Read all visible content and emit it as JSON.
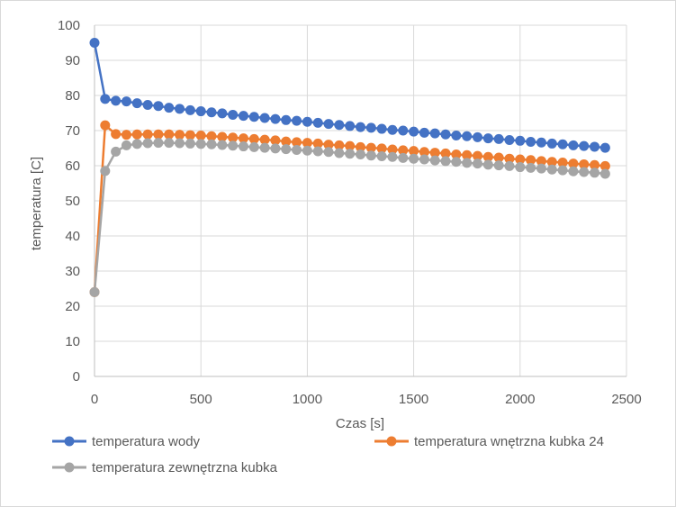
{
  "chart_data": {
    "type": "line",
    "xlabel": "Czas [s]",
    "ylabel": "temperatura [C]",
    "xlim": [
      0,
      2500
    ],
    "ylim": [
      0,
      100
    ],
    "x_ticks": [
      0,
      500,
      1000,
      1500,
      2000,
      2500
    ],
    "y_ticks": [
      0,
      10,
      20,
      30,
      40,
      50,
      60,
      70,
      80,
      90,
      100
    ],
    "grid": true,
    "legend_position": "bottom",
    "x": [
      0,
      50,
      100,
      150,
      200,
      250,
      300,
      350,
      400,
      450,
      500,
      550,
      600,
      650,
      700,
      750,
      800,
      850,
      900,
      950,
      1000,
      1050,
      1100,
      1150,
      1200,
      1250,
      1300,
      1350,
      1400,
      1450,
      1500,
      1550,
      1600,
      1650,
      1700,
      1750,
      1800,
      1850,
      1900,
      1950,
      2000,
      2050,
      2100,
      2150,
      2200,
      2250,
      2300,
      2350,
      2400
    ],
    "series": [
      {
        "name": "temperatura wody",
        "color": "#4472c4",
        "values": [
          95.0,
          79.0,
          78.5,
          78.3,
          77.8,
          77.3,
          77.0,
          76.5,
          76.2,
          75.8,
          75.5,
          75.2,
          74.9,
          74.5,
          74.2,
          73.9,
          73.6,
          73.3,
          73.0,
          72.8,
          72.5,
          72.2,
          71.9,
          71.6,
          71.3,
          71.0,
          70.8,
          70.5,
          70.2,
          70.0,
          69.7,
          69.4,
          69.2,
          68.9,
          68.6,
          68.4,
          68.1,
          67.8,
          67.6,
          67.3,
          67.1,
          66.8,
          66.6,
          66.3,
          66.1,
          65.8,
          65.6,
          65.4,
          65.1
        ]
      },
      {
        "name": "temperatura wnętrzna kubka 24",
        "color": "#ed7d31",
        "values": [
          24.0,
          71.5,
          69.0,
          68.8,
          68.9,
          68.9,
          68.9,
          68.9,
          68.8,
          68.7,
          68.6,
          68.4,
          68.2,
          68.0,
          67.8,
          67.6,
          67.4,
          67.2,
          66.9,
          66.7,
          66.5,
          66.3,
          66.0,
          65.8,
          65.6,
          65.3,
          65.1,
          64.9,
          64.6,
          64.4,
          64.2,
          63.9,
          63.7,
          63.5,
          63.2,
          63.0,
          62.8,
          62.5,
          62.3,
          62.0,
          61.8,
          61.6,
          61.3,
          61.1,
          60.9,
          60.6,
          60.4,
          60.2,
          59.9
        ]
      },
      {
        "name": "temperatura zewnętrzna kubka",
        "color": "#a5a5a5",
        "values": [
          24.0,
          58.5,
          64.0,
          65.8,
          66.2,
          66.4,
          66.5,
          66.5,
          66.4,
          66.3,
          66.2,
          66.1,
          65.9,
          65.7,
          65.5,
          65.3,
          65.1,
          64.9,
          64.7,
          64.5,
          64.3,
          64.1,
          63.9,
          63.6,
          63.4,
          63.2,
          62.9,
          62.7,
          62.5,
          62.2,
          62.0,
          61.8,
          61.5,
          61.3,
          61.1,
          60.8,
          60.6,
          60.3,
          60.1,
          59.9,
          59.6,
          59.4,
          59.2,
          58.9,
          58.7,
          58.4,
          58.2,
          58.0,
          57.7
        ]
      }
    ]
  },
  "styles": {
    "grid_color": "#d9d9d9",
    "axis_color": "#bfbfbf",
    "border_color": "#d9d9d9",
    "text_color": "#595959"
  }
}
